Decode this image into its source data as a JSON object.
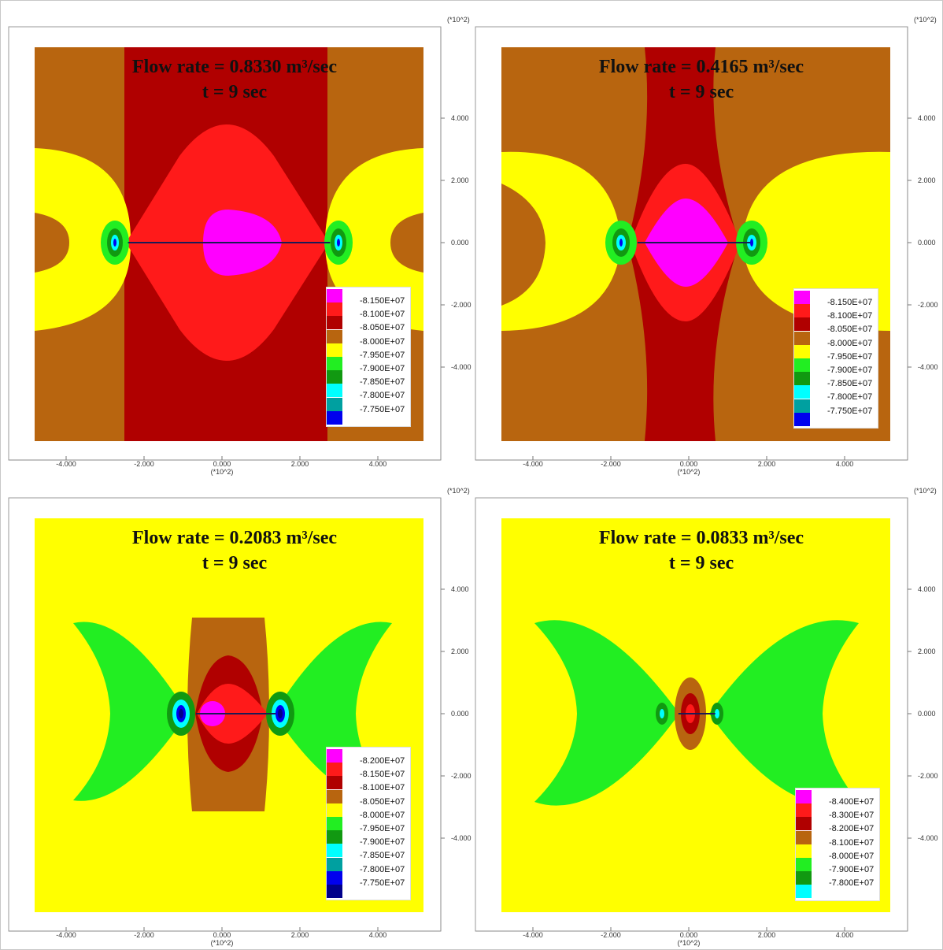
{
  "chart_data": [
    {
      "type": "heatmap",
      "title": "Flow rate = 0.8330 m³/sec",
      "subtitle": "t = 9 sec",
      "scale_label": "(*10^2)",
      "x_ticks": [
        "-4.000",
        "-2.000",
        "0.000",
        "2.000",
        "4.000"
      ],
      "y_ticks": [
        "4.000",
        "2.000",
        "0.000",
        "-2.000",
        "-4.000"
      ],
      "xlim": [
        -5,
        5
      ],
      "ylim": [
        -5,
        5
      ],
      "fracture": [
        -2.6,
        2.6
      ],
      "legend": {
        "labels": [
          "-8.150E+07",
          "-8.100E+07",
          "-8.050E+07",
          "-8.000E+07",
          "-7.950E+07",
          "-7.900E+07",
          "-7.850E+07",
          "-7.800E+07",
          "-7.750E+07"
        ],
        "colors": [
          "#ff00ff",
          "#ff1a1a",
          "#b00000",
          "#b8650f",
          "#ffff00",
          "#22ee22",
          "#119911",
          "#00ffff",
          "#00a0a0",
          "#0000ee"
        ]
      }
    },
    {
      "type": "heatmap",
      "title": "Flow rate = 0.4165 m³/sec",
      "subtitle": "t = 9 sec",
      "scale_label": "(*10^2)",
      "x_ticks": [
        "-4.000",
        "-2.000",
        "0.000",
        "2.000",
        "4.000"
      ],
      "y_ticks": [
        "4.000",
        "2.000",
        "0.000",
        "-2.000",
        "-4.000"
      ],
      "xlim": [
        -5,
        5
      ],
      "ylim": [
        -5,
        5
      ],
      "fracture": [
        -1.5,
        1.4
      ],
      "legend": {
        "labels": [
          "-8.150E+07",
          "-8.100E+07",
          "-8.050E+07",
          "-8.000E+07",
          "-7.950E+07",
          "-7.900E+07",
          "-7.850E+07",
          "-7.800E+07",
          "-7.750E+07"
        ],
        "colors": [
          "#ff00ff",
          "#ff1a1a",
          "#b00000",
          "#b8650f",
          "#ffff00",
          "#22ee22",
          "#119911",
          "#00ffff",
          "#00a0a0",
          "#0000ee"
        ]
      }
    },
    {
      "type": "heatmap",
      "title": "Flow rate = 0.2083 m³/sec",
      "subtitle": "t = 9 sec",
      "scale_label": "(*10^2)",
      "x_ticks": [
        "-4.000",
        "-2.000",
        "0.000",
        "2.000",
        "4.000"
      ],
      "y_ticks": [
        "4.000",
        "2.000",
        "0.000",
        "-2.000",
        "-4.000"
      ],
      "xlim": [
        -5,
        5
      ],
      "ylim": [
        -5,
        5
      ],
      "fracture": [
        -0.85,
        1.2
      ],
      "legend": {
        "labels": [
          "-8.200E+07",
          "-8.150E+07",
          "-8.100E+07",
          "-8.050E+07",
          "-8.000E+07",
          "-7.950E+07",
          "-7.900E+07",
          "-7.850E+07",
          "-7.800E+07",
          "-7.750E+07"
        ],
        "colors": [
          "#ff00ff",
          "#ff1a1a",
          "#b00000",
          "#b8650f",
          "#ffff00",
          "#22ee22",
          "#119911",
          "#00ffff",
          "#00a0a0",
          "#0000ee",
          "#00008b"
        ]
      }
    },
    {
      "type": "heatmap",
      "title": "Flow rate = 0.0833 m³/sec",
      "subtitle": "t = 9 sec",
      "scale_label": "(*10^2)",
      "x_ticks": [
        "-4.000",
        "-2.000",
        "0.000",
        "2.000",
        "4.000"
      ],
      "y_ticks": [
        "4.000",
        "2.000",
        "0.000",
        "-2.000",
        "-4.000"
      ],
      "xlim": [
        -5,
        5
      ],
      "ylim": [
        -5,
        5
      ],
      "fracture": [
        -0.45,
        0.5
      ],
      "legend": {
        "labels": [
          "-8.400E+07",
          "-8.300E+07",
          "-8.200E+07",
          "-8.100E+07",
          "-8.000E+07",
          "-7.900E+07",
          "-7.800E+07"
        ],
        "colors": [
          "#ff00ff",
          "#ff1a1a",
          "#b00000",
          "#b8650f",
          "#ffff00",
          "#22ee22",
          "#119911",
          "#00ffff"
        ]
      }
    }
  ]
}
